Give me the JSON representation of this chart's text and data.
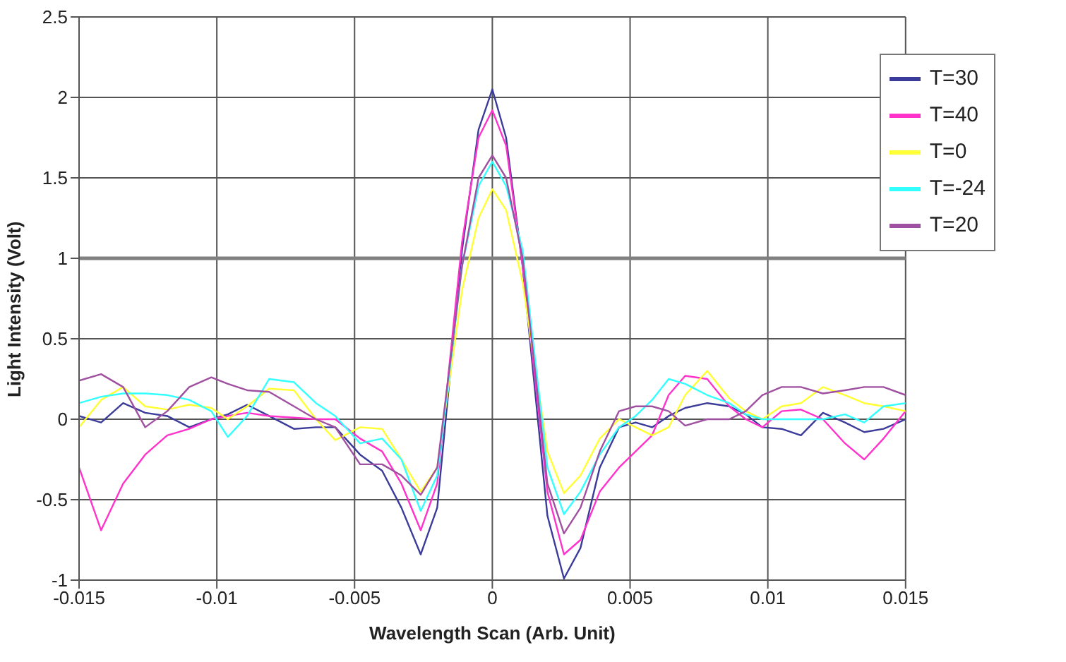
{
  "chart_data": {
    "type": "line",
    "xlabel": "Wavelength Scan (Arb. Unit)",
    "ylabel": "Light Intensity (Volt)",
    "x": [
      -0.015,
      -0.0142,
      -0.0134,
      -0.0126,
      -0.0118,
      -0.011,
      -0.0102,
      -0.0096,
      -0.0089,
      -0.0081,
      -0.0072,
      -0.0064,
      -0.0057,
      -0.0048,
      -0.004,
      -0.0033,
      -0.0026,
      -0.002,
      -0.0011,
      -0.0005,
      0,
      0.0005,
      0.0011,
      0.002,
      0.0026,
      0.0032,
      0.0039,
      0.0046,
      0.0052,
      0.0058,
      0.0064,
      0.007,
      0.0078,
      0.0086,
      0.0092,
      0.0098,
      0.0105,
      0.0112,
      0.012,
      0.0128,
      0.0135,
      0.0142,
      0.015
    ],
    "series": [
      {
        "name": "T=30",
        "color": "#3b3b9a",
        "values": [
          0.02,
          -0.02,
          0.1,
          0.04,
          0.02,
          -0.05,
          0.0,
          0.03,
          0.09,
          0.02,
          -0.06,
          -0.05,
          -0.05,
          -0.22,
          -0.32,
          -0.55,
          -0.84,
          -0.55,
          1.05,
          1.8,
          2.05,
          1.75,
          0.95,
          -0.6,
          -0.99,
          -0.8,
          -0.3,
          -0.05,
          -0.02,
          -0.05,
          0.02,
          0.07,
          0.1,
          0.08,
          0.03,
          -0.05,
          -0.06,
          -0.1,
          0.04,
          -0.02,
          -0.08,
          -0.06,
          0.0
        ]
      },
      {
        "name": "T=40",
        "color": "#ff33cc",
        "values": [
          -0.3,
          -0.69,
          -0.4,
          -0.22,
          -0.1,
          -0.06,
          0.0,
          0.02,
          0.04,
          0.02,
          0.01,
          0.0,
          0.0,
          -0.12,
          -0.2,
          -0.4,
          -0.69,
          -0.4,
          1.1,
          1.75,
          1.92,
          1.7,
          0.95,
          -0.45,
          -0.84,
          -0.75,
          -0.45,
          -0.3,
          -0.2,
          -0.1,
          0.15,
          0.27,
          0.25,
          0.08,
          0.0,
          -0.05,
          0.05,
          0.06,
          0.0,
          -0.15,
          -0.25,
          -0.12,
          0.05
        ]
      },
      {
        "name": "T=0",
        "color": "#ffff33",
        "values": [
          -0.05,
          0.12,
          0.2,
          0.08,
          0.06,
          0.09,
          0.07,
          0.0,
          0.08,
          0.19,
          0.18,
          0.0,
          -0.13,
          -0.05,
          -0.06,
          -0.25,
          -0.45,
          -0.3,
          0.8,
          1.25,
          1.43,
          1.3,
          0.85,
          -0.2,
          -0.46,
          -0.35,
          -0.12,
          0.0,
          -0.05,
          -0.1,
          -0.05,
          0.15,
          0.3,
          0.13,
          0.05,
          0.0,
          0.08,
          0.1,
          0.2,
          0.15,
          0.1,
          0.08,
          0.05
        ]
      },
      {
        "name": "T=-24",
        "color": "#33ffff",
        "values": [
          0.1,
          0.14,
          0.16,
          0.16,
          0.15,
          0.12,
          0.05,
          -0.11,
          0.02,
          0.25,
          0.23,
          0.1,
          0.02,
          -0.15,
          -0.12,
          -0.25,
          -0.57,
          -0.35,
          0.95,
          1.45,
          1.6,
          1.45,
          1.05,
          -0.3,
          -0.59,
          -0.45,
          -0.22,
          -0.05,
          0.02,
          0.12,
          0.25,
          0.22,
          0.15,
          0.1,
          0.03,
          0.0,
          0.0,
          0.0,
          0.0,
          0.03,
          -0.02,
          0.08,
          0.1
        ]
      },
      {
        "name": "T=20",
        "color": "#a050a0",
        "values": [
          0.24,
          0.28,
          0.2,
          -0.05,
          0.05,
          0.2,
          0.26,
          0.22,
          0.18,
          0.17,
          0.08,
          0.0,
          -0.05,
          -0.28,
          -0.28,
          -0.35,
          -0.47,
          -0.3,
          0.95,
          1.5,
          1.64,
          1.5,
          1.0,
          -0.4,
          -0.71,
          -0.55,
          -0.2,
          0.05,
          0.08,
          0.08,
          0.05,
          -0.04,
          0.0,
          0.0,
          0.05,
          0.15,
          0.2,
          0.2,
          0.16,
          0.18,
          0.2,
          0.2,
          0.15
        ]
      }
    ],
    "xlim": [
      -0.015,
      0.015
    ],
    "xticks": [
      -0.015,
      -0.01,
      -0.005,
      0,
      0.005,
      0.01,
      0.015
    ],
    "ylim": [
      -1,
      2.5
    ],
    "yticks": [
      -1,
      -0.5,
      0,
      0.5,
      1,
      1.5,
      2,
      2.5
    ],
    "ref_lines": [
      {
        "axis": "y",
        "value": 1,
        "color": "#808080"
      }
    ],
    "grid": true,
    "legend": "top right",
    "marker": "none",
    "line_style": "solid"
  }
}
